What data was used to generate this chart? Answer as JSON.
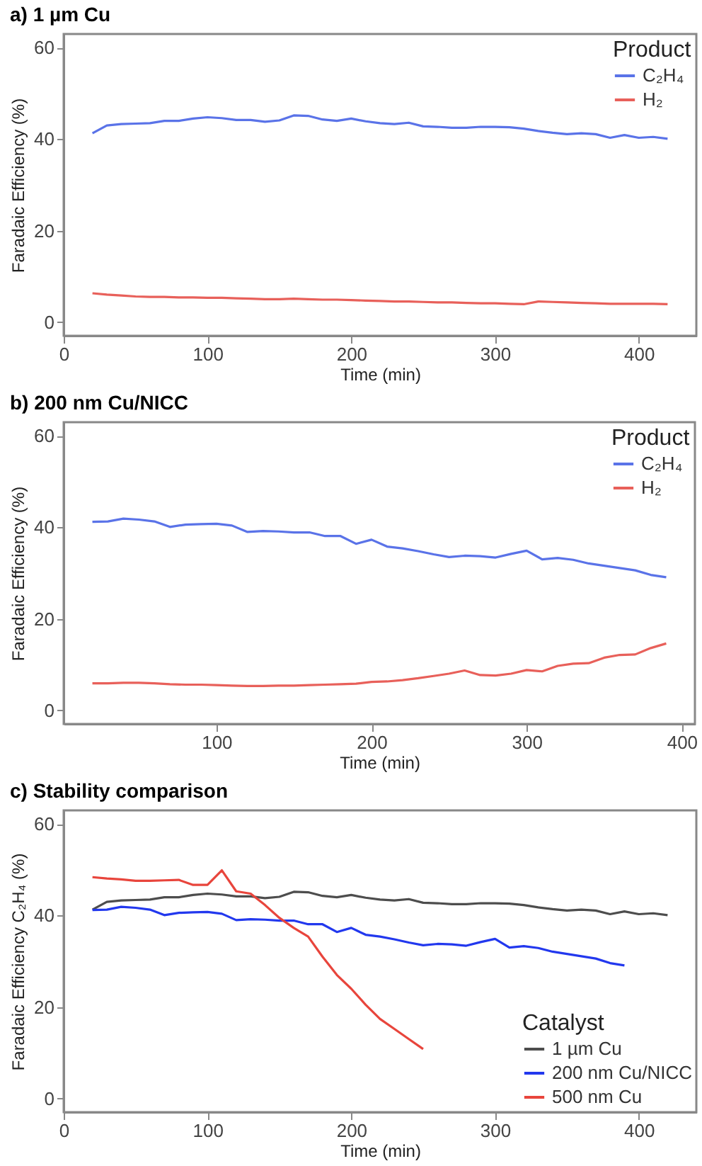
{
  "chart_data": [
    {
      "type": "line",
      "title": "a) 1 µm Cu",
      "xlabel": "Time (min)",
      "ylabel": "Faradaic Efficiency (%)",
      "legend_title": "Product",
      "legend": "top right",
      "grid": false,
      "x": [
        20,
        30,
        40,
        50,
        60,
        70,
        80,
        90,
        100,
        110,
        120,
        130,
        140,
        150,
        160,
        170,
        180,
        190,
        200,
        210,
        220,
        230,
        240,
        250,
        260,
        270,
        280,
        290,
        300,
        310,
        320,
        330,
        340,
        350,
        360,
        370,
        380,
        390,
        400,
        410,
        420
      ],
      "xlim": [
        0,
        440
      ],
      "xticks": [
        0,
        100,
        200,
        300,
        400
      ],
      "ylim": [
        -3,
        63
      ],
      "yticks": [
        0,
        20,
        40,
        60
      ],
      "series": [
        {
          "name": "C₂H₄",
          "color": "#5a73e8",
          "values": [
            41.3,
            43,
            43.3,
            43.4,
            43.5,
            44,
            44,
            44.5,
            44.8,
            44.6,
            44.2,
            44.2,
            43.8,
            44.1,
            45.2,
            45.1,
            44.3,
            44,
            44.5,
            43.9,
            43.5,
            43.3,
            43.6,
            42.8,
            42.7,
            42.5,
            42.5,
            42.7,
            42.7,
            42.6,
            42.3,
            41.8,
            41.4,
            41.1,
            41.3,
            41.1,
            40.3,
            40.9,
            40.3,
            40.5,
            40.1
          ]
        },
        {
          "name": "H₂",
          "color": "#e8605a",
          "values": [
            6.3,
            6,
            5.8,
            5.6,
            5.5,
            5.5,
            5.4,
            5.4,
            5.3,
            5.3,
            5.2,
            5.1,
            5,
            5,
            5.1,
            5,
            4.9,
            4.9,
            4.8,
            4.7,
            4.6,
            4.5,
            4.5,
            4.4,
            4.3,
            4.3,
            4.2,
            4.1,
            4.1,
            4,
            3.9,
            4.5,
            4.4,
            4.3,
            4.2,
            4.1,
            4,
            4,
            4,
            4,
            3.9
          ]
        }
      ]
    },
    {
      "type": "line",
      "title": "b) 200 nm Cu/NICC",
      "xlabel": "Time (min)",
      "ylabel": "Faradaic Efficiency (%)",
      "legend_title": "Product",
      "legend": "top right",
      "grid": false,
      "x": [
        20,
        30,
        40,
        50,
        60,
        70,
        80,
        90,
        100,
        110,
        120,
        130,
        140,
        150,
        160,
        170,
        180,
        190,
        200,
        210,
        220,
        230,
        240,
        250,
        260,
        270,
        280,
        290,
        300,
        310,
        320,
        330,
        340,
        350,
        360,
        370,
        380,
        390
      ],
      "xlim": [
        1.5,
        408.5
      ],
      "xticks": [
        100,
        200,
        300,
        400
      ],
      "ylim": [
        -3,
        63
      ],
      "yticks": [
        0,
        20,
        40,
        60
      ],
      "series": [
        {
          "name": "C₂H₄",
          "color": "#5a73e8",
          "values": [
            41.2,
            41.3,
            41.9,
            41.7,
            41.3,
            40.1,
            40.6,
            40.7,
            40.8,
            40.4,
            39,
            39.2,
            39.1,
            38.9,
            38.9,
            38.1,
            38.1,
            36.4,
            37.3,
            35.8,
            35.4,
            34.8,
            34.1,
            33.5,
            33.8,
            33.7,
            33.4,
            34.2,
            34.9,
            33,
            33.3,
            32.9,
            32.1,
            31.6,
            31.1,
            30.6,
            29.6,
            29.1
          ]
        },
        {
          "name": "H₂",
          "color": "#e8605a",
          "values": [
            5.9,
            5.9,
            6,
            6,
            5.9,
            5.7,
            5.6,
            5.6,
            5.5,
            5.4,
            5.3,
            5.3,
            5.4,
            5.4,
            5.5,
            5.6,
            5.7,
            5.8,
            6.2,
            6.3,
            6.6,
            7,
            7.5,
            8,
            8.7,
            7.7,
            7.6,
            8,
            8.8,
            8.5,
            9.7,
            10.2,
            10.3,
            11.5,
            12.1,
            12.2,
            13.6,
            14.6
          ]
        }
      ]
    },
    {
      "type": "line",
      "title": "c) Stability comparison",
      "xlabel": "Time (min)",
      "ylabel": "Faradaic Efficiency C₂H₄ (%)",
      "legend_title": "Catalyst",
      "legend": "bottom right",
      "grid": false,
      "xlim": [
        0,
        440
      ],
      "xticks": [
        0,
        100,
        200,
        300,
        400
      ],
      "ylim": [
        -3,
        63
      ],
      "yticks": [
        0,
        20,
        40,
        60
      ],
      "series": [
        {
          "name": "1 µm Cu",
          "color": "#4d4d4d",
          "x": [
            20,
            30,
            40,
            50,
            60,
            70,
            80,
            90,
            100,
            110,
            120,
            130,
            140,
            150,
            160,
            170,
            180,
            190,
            200,
            210,
            220,
            230,
            240,
            250,
            260,
            270,
            280,
            290,
            300,
            310,
            320,
            330,
            340,
            350,
            360,
            370,
            380,
            390,
            400,
            410,
            420
          ],
          "values": [
            41.3,
            43,
            43.3,
            43.4,
            43.5,
            44,
            44,
            44.5,
            44.8,
            44.6,
            44.2,
            44.2,
            43.8,
            44.1,
            45.2,
            45.1,
            44.3,
            44,
            44.5,
            43.9,
            43.5,
            43.3,
            43.6,
            42.8,
            42.7,
            42.5,
            42.5,
            42.7,
            42.7,
            42.6,
            42.3,
            41.8,
            41.4,
            41.1,
            41.3,
            41.1,
            40.3,
            40.9,
            40.3,
            40.5,
            40.1
          ]
        },
        {
          "name": "200 nm Cu/NICC",
          "color": "#2238ee",
          "x": [
            20,
            30,
            40,
            50,
            60,
            70,
            80,
            90,
            100,
            110,
            120,
            130,
            140,
            150,
            160,
            170,
            180,
            190,
            200,
            210,
            220,
            230,
            240,
            250,
            260,
            270,
            280,
            290,
            300,
            310,
            320,
            330,
            340,
            350,
            360,
            370,
            380,
            390
          ],
          "values": [
            41.2,
            41.3,
            41.9,
            41.7,
            41.3,
            40.1,
            40.6,
            40.7,
            40.8,
            40.4,
            39,
            39.2,
            39.1,
            38.9,
            38.9,
            38.1,
            38.1,
            36.4,
            37.3,
            35.8,
            35.4,
            34.8,
            34.1,
            33.5,
            33.8,
            33.7,
            33.4,
            34.2,
            34.9,
            33,
            33.3,
            32.9,
            32.1,
            31.6,
            31.1,
            30.6,
            29.6,
            29.1
          ]
        },
        {
          "name": "500 nm Cu",
          "color": "#e8453c",
          "x": [
            20,
            30,
            40,
            50,
            60,
            70,
            80,
            90,
            100,
            110,
            120,
            130,
            140,
            150,
            160,
            170,
            180,
            190,
            200,
            210,
            220,
            230,
            240,
            250
          ],
          "values": [
            48.4,
            48.1,
            47.9,
            47.6,
            47.6,
            47.7,
            47.8,
            46.7,
            46.7,
            49.9,
            45.3,
            44.8,
            42.3,
            39.5,
            37.3,
            35.4,
            31,
            27,
            24,
            20.5,
            17.4,
            15.2,
            13,
            10.8
          ]
        }
      ]
    }
  ]
}
